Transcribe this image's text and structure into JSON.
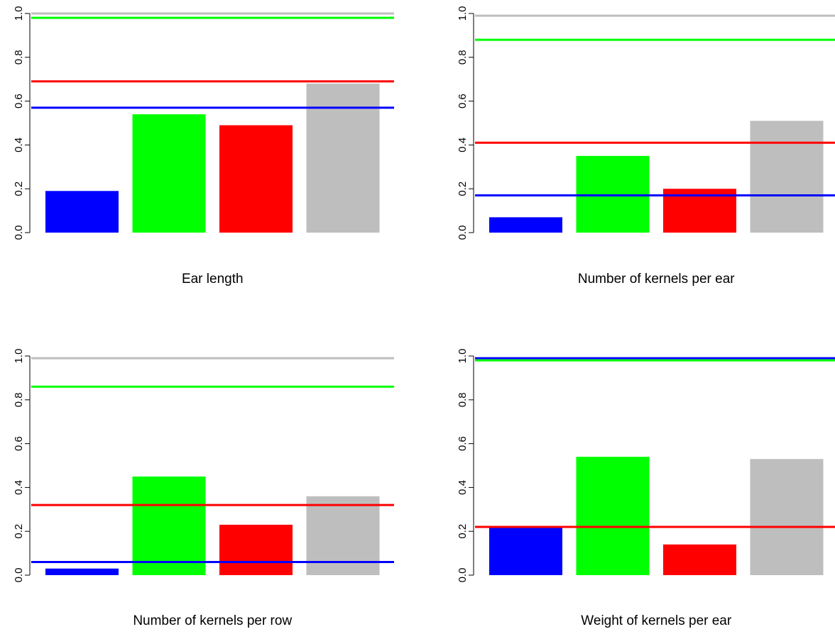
{
  "chart_data": [
    {
      "type": "bar",
      "title": "Ear length",
      "ylim": [
        0,
        1.0
      ],
      "yticks": [
        0.0,
        0.2,
        0.4,
        0.6,
        0.8,
        1.0
      ],
      "ytick_labels": [
        "0.0",
        "0.2",
        "0.4",
        "0.6",
        "0.8",
        "1.0"
      ],
      "bars": [
        {
          "value": 0.19,
          "color": "#0000ff"
        },
        {
          "value": 0.54,
          "color": "#00ff00"
        },
        {
          "value": 0.49,
          "color": "#ff0000"
        },
        {
          "value": 0.68,
          "color": "#bebebe"
        }
      ],
      "hlines": [
        {
          "value": 0.98,
          "color": "#00ff00"
        },
        {
          "value": 0.69,
          "color": "#ff0000"
        },
        {
          "value": 0.57,
          "color": "#0000ff"
        },
        {
          "value": 1.0,
          "color": "#bebebe"
        }
      ]
    },
    {
      "type": "bar",
      "title": "Number of kernels per ear",
      "ylim": [
        0,
        1.0
      ],
      "yticks": [
        0.0,
        0.2,
        0.4,
        0.6,
        0.8,
        1.0
      ],
      "ytick_labels": [
        "0.0",
        "0.2",
        "0.4",
        "0.6",
        "0.8",
        "1.0"
      ],
      "bars": [
        {
          "value": 0.07,
          "color": "#0000ff"
        },
        {
          "value": 0.35,
          "color": "#00ff00"
        },
        {
          "value": 0.2,
          "color": "#ff0000"
        },
        {
          "value": 0.51,
          "color": "#bebebe"
        }
      ],
      "hlines": [
        {
          "value": 0.99,
          "color": "#bebebe"
        },
        {
          "value": 0.88,
          "color": "#00ff00"
        },
        {
          "value": 0.41,
          "color": "#ff0000"
        },
        {
          "value": 0.17,
          "color": "#0000ff"
        }
      ]
    },
    {
      "type": "bar",
      "title": "Number of kernels per row",
      "ylim": [
        0,
        1.0
      ],
      "yticks": [
        0.0,
        0.2,
        0.4,
        0.6,
        0.8,
        1.0
      ],
      "ytick_labels": [
        "0.0",
        "0.2",
        "0.4",
        "0.6",
        "0.8",
        "1.0"
      ],
      "bars": [
        {
          "value": 0.03,
          "color": "#0000ff"
        },
        {
          "value": 0.45,
          "color": "#00ff00"
        },
        {
          "value": 0.23,
          "color": "#ff0000"
        },
        {
          "value": 0.36,
          "color": "#bebebe"
        }
      ],
      "hlines": [
        {
          "value": 0.99,
          "color": "#bebebe"
        },
        {
          "value": 0.86,
          "color": "#00ff00"
        },
        {
          "value": 0.32,
          "color": "#ff0000"
        },
        {
          "value": 0.06,
          "color": "#0000ff"
        }
      ]
    },
    {
      "type": "bar",
      "title": "Weight of kernels per ear",
      "ylim": [
        0,
        1.0
      ],
      "yticks": [
        0.0,
        0.2,
        0.4,
        0.6,
        0.8,
        1.0
      ],
      "ytick_labels": [
        "0.0",
        "0.2",
        "0.4",
        "0.6",
        "0.8",
        "1.0"
      ],
      "bars": [
        {
          "value": 0.22,
          "color": "#0000ff"
        },
        {
          "value": 0.54,
          "color": "#00ff00"
        },
        {
          "value": 0.14,
          "color": "#ff0000"
        },
        {
          "value": 0.53,
          "color": "#bebebe"
        }
      ],
      "hlines": [
        {
          "value": 0.99,
          "color": "#0000ff"
        },
        {
          "value": 0.98,
          "color": "#00ff00"
        },
        {
          "value": 0.22,
          "color": "#ff0000"
        }
      ]
    }
  ]
}
